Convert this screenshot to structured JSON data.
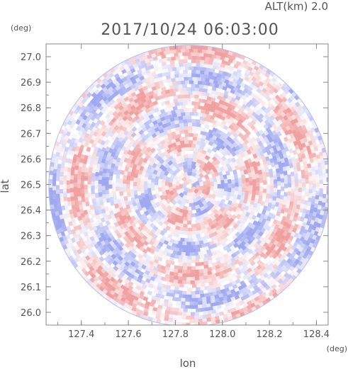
{
  "chart_data": {
    "type": "heatmap",
    "title": "2017/10/24 06:03:00",
    "subtitle": "ALT(km) 2.0",
    "xlabel": "lon",
    "ylabel": "lat",
    "x_unit": "(deg)",
    "y_unit": "(deg)",
    "xlim": [
      127.25,
      128.45
    ],
    "ylim": [
      25.95,
      27.05
    ],
    "x_ticks": [
      "127.4",
      "127.6",
      "127.8",
      "128.0",
      "128.2",
      "128.4"
    ],
    "x_tick_values": [
      127.4,
      127.6,
      127.8,
      128.0,
      128.2,
      128.4
    ],
    "y_ticks": [
      "26.0",
      "26.1",
      "26.2",
      "26.3",
      "26.4",
      "26.5",
      "26.6",
      "26.7",
      "26.8",
      "26.9",
      "27.0"
    ],
    "y_tick_values": [
      26.0,
      26.1,
      26.2,
      26.3,
      26.4,
      26.5,
      26.6,
      26.7,
      26.8,
      26.9,
      27.0
    ],
    "field": {
      "center": [
        127.86,
        26.495
      ],
      "radius_lon": 0.6,
      "radius_lat": 0.55,
      "colors": {
        "positive": "#f08f8f",
        "negative": "#9aa0f0",
        "background": "#ffffff",
        "frame": "#888888"
      }
    },
    "grid": false
  }
}
